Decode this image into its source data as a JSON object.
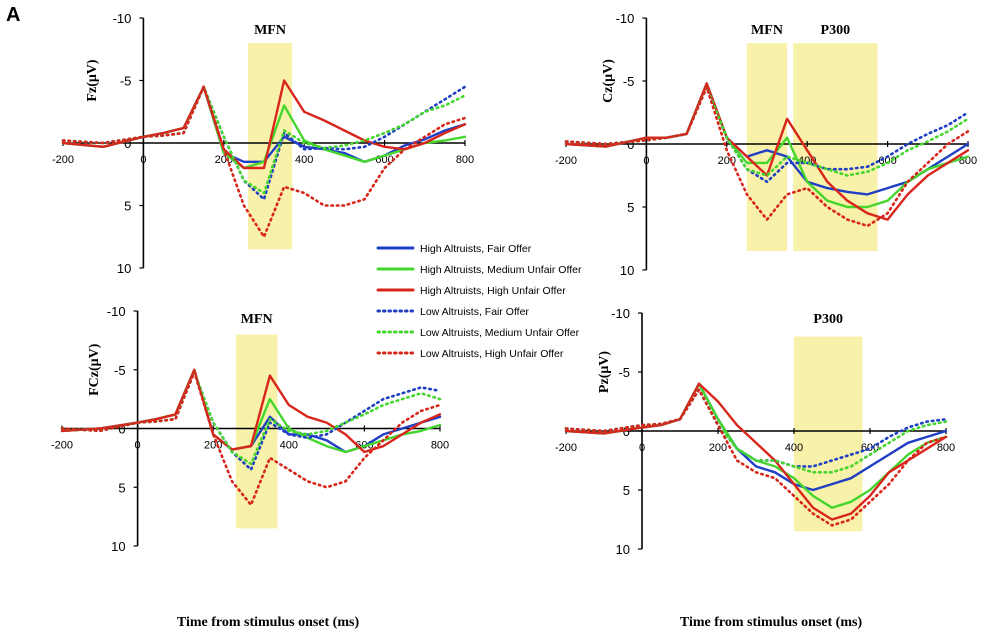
{
  "panel_label": "A",
  "x_axis_label": "Time from stimulus onset (ms)",
  "legend": [
    {
      "name": "High Altruists, Fair Offer",
      "color": "#1f3fc4",
      "style": "solid"
    },
    {
      "name": "High Altruists, Medium Unfair Offer",
      "color": "#44d62c",
      "style": "solid"
    },
    {
      "name": "High Altruists, High Unfair Offer",
      "color": "#d9261c",
      "style": "solid"
    },
    {
      "name": "Low Altruists, Fair Offer",
      "color": "#1f3fc4",
      "style": "dotted"
    },
    {
      "name": "Low Altruists, Medium Unfair Offer",
      "color": "#44d62c",
      "style": "dotted"
    },
    {
      "name": "Low Altruists, High Unfair Offer",
      "color": "#d9261c",
      "style": "dotted"
    }
  ],
  "chart_data": [
    {
      "type": "line",
      "electrode_label": "Fz(μV)",
      "components": [
        {
          "label": "MFN",
          "window_ms": [
            260,
            370
          ]
        }
      ],
      "xlim": [
        -200,
        800
      ],
      "ylim": [
        -10,
        10
      ],
      "y_inverted": true,
      "xticks": [
        -200,
        0,
        200,
        400,
        600,
        800
      ],
      "yticks": [
        -10,
        -5,
        0,
        5,
        10
      ],
      "x": [
        -200,
        -100,
        0,
        50,
        100,
        150,
        200,
        250,
        300,
        350,
        400,
        450,
        500,
        550,
        600,
        650,
        700,
        750,
        800
      ],
      "series": [
        {
          "values": [
            0,
            0.3,
            -0.5,
            -0.8,
            -1.2,
            -4.5,
            0.8,
            1.5,
            1.5,
            -0.5,
            0.3,
            0.5,
            0.8,
            1.5,
            1.0,
            0.2,
            -0.3,
            -1.0,
            -1.5
          ]
        },
        {
          "values": [
            0,
            0.3,
            -0.5,
            -0.8,
            -1.2,
            -4.5,
            0.8,
            2.0,
            1.5,
            -3.0,
            -0.2,
            0.5,
            1.0,
            1.5,
            1.0,
            0.5,
            0.0,
            -0.2,
            -0.5
          ]
        },
        {
          "values": [
            0,
            0.3,
            -0.5,
            -0.8,
            -1.2,
            -4.5,
            0.5,
            2.0,
            2.0,
            -5.0,
            -2.5,
            -1.8,
            -1.0,
            -0.2,
            0.3,
            0.5,
            0.0,
            -0.8,
            -1.5
          ]
        },
        {
          "values": [
            -0.2,
            0.0,
            -0.5,
            -0.6,
            -0.8,
            -4.5,
            -0.5,
            3.0,
            4.5,
            -0.8,
            0.5,
            0.4,
            0.5,
            0.3,
            -0.5,
            -1.5,
            -2.5,
            -3.5,
            -4.5
          ]
        },
        {
          "values": [
            -0.2,
            0.0,
            -0.5,
            -0.6,
            -0.8,
            -4.5,
            -0.5,
            3.0,
            4.0,
            -1.0,
            0.0,
            0.4,
            0.2,
            -0.2,
            -0.8,
            -1.5,
            -2.5,
            -3.0,
            -3.8
          ]
        },
        {
          "values": [
            -0.2,
            0.0,
            -0.5,
            -0.6,
            -0.8,
            -4.5,
            0.5,
            5.0,
            7.5,
            3.5,
            4.0,
            5.0,
            5.0,
            4.5,
            2.0,
            0.5,
            -0.5,
            -1.5,
            -2.0
          ]
        }
      ]
    },
    {
      "type": "line",
      "electrode_label": "Cz(μV)",
      "components": [
        {
          "label": "MFN",
          "window_ms": [
            250,
            350
          ]
        },
        {
          "label": "P300",
          "window_ms": [
            365,
            575
          ]
        }
      ],
      "xlim": [
        -200,
        800
      ],
      "ylim": [
        -10,
        10
      ],
      "y_inverted": true,
      "xticks": [
        -200,
        0,
        200,
        400,
        600,
        800
      ],
      "yticks": [
        -10,
        -5,
        0,
        5,
        10
      ],
      "x": [
        -200,
        -100,
        0,
        50,
        100,
        150,
        200,
        250,
        300,
        350,
        400,
        450,
        500,
        550,
        600,
        650,
        700,
        750,
        800
      ],
      "series": [
        {
          "values": [
            0,
            0.2,
            -0.5,
            -0.5,
            -0.8,
            -4.8,
            -0.5,
            1.0,
            0.5,
            1.0,
            3.0,
            3.5,
            3.8,
            4.0,
            3.5,
            3.0,
            2.0,
            1.0,
            0.0
          ]
        },
        {
          "values": [
            0,
            0.2,
            -0.5,
            -0.5,
            -0.8,
            -4.8,
            -0.5,
            1.5,
            1.5,
            -0.5,
            3.0,
            4.5,
            5.0,
            5.0,
            4.5,
            3.0,
            2.0,
            1.5,
            1.0
          ]
        },
        {
          "values": [
            0,
            0.2,
            -0.5,
            -0.5,
            -0.8,
            -4.8,
            -0.5,
            1.0,
            2.5,
            -2.0,
            0.5,
            3.0,
            4.5,
            5.5,
            6.0,
            4.0,
            2.5,
            1.5,
            0.5
          ]
        },
        {
          "values": [
            -0.2,
            0.0,
            -0.3,
            -0.5,
            -0.8,
            -4.5,
            -0.5,
            2.0,
            3.0,
            1.5,
            1.5,
            2.0,
            2.0,
            1.8,
            1.0,
            0.0,
            -0.8,
            -1.5,
            -2.5
          ]
        },
        {
          "values": [
            -0.2,
            0.0,
            -0.3,
            -0.5,
            -0.8,
            -4.5,
            -0.5,
            2.0,
            2.5,
            1.0,
            1.5,
            2.0,
            2.5,
            2.2,
            1.5,
            0.5,
            -0.2,
            -1.0,
            -2.0
          ]
        },
        {
          "values": [
            -0.2,
            0.0,
            -0.3,
            -0.5,
            -0.8,
            -4.5,
            0.5,
            4.0,
            6.0,
            4.0,
            3.5,
            5.0,
            6.0,
            6.5,
            5.5,
            3.0,
            1.5,
            0.0,
            -1.0
          ]
        }
      ]
    },
    {
      "type": "line",
      "electrode_label": "FCz(μV)",
      "components": [
        {
          "label": "MFN",
          "window_ms": [
            260,
            370
          ]
        }
      ],
      "xlim": [
        -200,
        800
      ],
      "ylim": [
        -10,
        10
      ],
      "y_inverted": true,
      "xticks": [
        -200,
        0,
        200,
        400,
        600,
        800
      ],
      "yticks": [
        -10,
        -5,
        0,
        5,
        10
      ],
      "x": [
        -200,
        -100,
        0,
        50,
        100,
        150,
        200,
        250,
        300,
        350,
        400,
        450,
        500,
        550,
        600,
        650,
        700,
        750,
        800
      ],
      "series": [
        {
          "values": [
            0.2,
            0,
            -0.5,
            -0.8,
            -1.2,
            -5.0,
            0.5,
            1.8,
            1.5,
            -1.0,
            0.5,
            0.5,
            1.0,
            2.0,
            1.5,
            0.5,
            0.0,
            -0.5,
            -1.0
          ]
        },
        {
          "values": [
            0.2,
            0,
            -0.5,
            -0.8,
            -1.2,
            -5.0,
            0.5,
            1.8,
            1.5,
            -2.5,
            0.0,
            0.8,
            1.5,
            2.0,
            1.5,
            1.0,
            0.5,
            0.2,
            -0.3
          ]
        },
        {
          "values": [
            0.2,
            0,
            -0.5,
            -0.8,
            -1.2,
            -5.0,
            0.5,
            1.8,
            1.5,
            -4.5,
            -2.0,
            -1.0,
            -0.5,
            0.5,
            2.0,
            1.5,
            0.5,
            -0.5,
            -1.2
          ]
        },
        {
          "values": [
            0.0,
            0.2,
            -0.5,
            -0.6,
            -0.8,
            -4.8,
            -0.5,
            2.0,
            3.5,
            -0.5,
            0.5,
            0.8,
            0.5,
            -0.5,
            -1.5,
            -2.5,
            -3.0,
            -3.5,
            -3.2
          ]
        },
        {
          "values": [
            0.0,
            0.2,
            -0.5,
            -0.6,
            -0.8,
            -4.8,
            -0.5,
            2.0,
            3.0,
            -0.8,
            0.2,
            0.5,
            0.2,
            -0.5,
            -1.2,
            -2.0,
            -2.5,
            -3.0,
            -2.5
          ]
        },
        {
          "values": [
            0.0,
            0.2,
            -0.5,
            -0.6,
            -0.8,
            -4.8,
            0.5,
            4.5,
            6.5,
            2.5,
            3.5,
            4.5,
            5.0,
            4.5,
            2.5,
            1.0,
            -0.5,
            -1.5,
            -2.0
          ]
        }
      ]
    },
    {
      "type": "line",
      "electrode_label": "Pz(μV)",
      "components": [
        {
          "label": "P300",
          "window_ms": [
            400,
            580
          ]
        }
      ],
      "xlim": [
        -200,
        800
      ],
      "ylim": [
        -10,
        10
      ],
      "y_inverted": true,
      "xticks": [
        -200,
        0,
        200,
        400,
        600,
        800
      ],
      "yticks": [
        -10,
        -5,
        0,
        5,
        10
      ],
      "x": [
        -200,
        -100,
        0,
        50,
        100,
        150,
        200,
        250,
        300,
        350,
        400,
        450,
        500,
        550,
        600,
        650,
        700,
        750,
        800
      ],
      "series": [
        {
          "values": [
            0.0,
            0.2,
            -0.3,
            -0.5,
            -1.0,
            -4.0,
            -1.0,
            1.5,
            3.0,
            3.5,
            4.5,
            5.0,
            4.5,
            4.0,
            3.0,
            2.0,
            1.0,
            0.5,
            0.0
          ]
        },
        {
          "values": [
            0.0,
            0.2,
            -0.3,
            -0.5,
            -1.0,
            -4.0,
            -1.0,
            1.5,
            2.5,
            3.0,
            4.0,
            5.5,
            6.5,
            6.0,
            5.0,
            3.5,
            2.0,
            1.0,
            0.5
          ]
        },
        {
          "values": [
            0.0,
            0.2,
            -0.3,
            -0.5,
            -1.0,
            -4.0,
            -2.5,
            -0.5,
            1.0,
            2.5,
            4.5,
            6.5,
            7.5,
            7.0,
            5.5,
            3.5,
            2.5,
            1.5,
            0.5
          ]
        },
        {
          "values": [
            -0.2,
            0.0,
            -0.5,
            -0.6,
            -1.0,
            -3.5,
            -0.5,
            1.5,
            2.5,
            2.5,
            3.0,
            3.0,
            2.5,
            2.0,
            1.5,
            0.5,
            -0.3,
            -0.8,
            -1.0
          ]
        },
        {
          "values": [
            -0.2,
            0.0,
            -0.5,
            -0.6,
            -1.0,
            -3.5,
            -0.5,
            1.5,
            2.5,
            2.5,
            3.0,
            3.5,
            3.5,
            3.0,
            2.0,
            1.0,
            0.0,
            -0.5,
            -0.8
          ]
        },
        {
          "values": [
            -0.2,
            0.0,
            -0.5,
            -0.6,
            -1.0,
            -3.5,
            -0.5,
            2.5,
            3.5,
            4.0,
            5.5,
            7.0,
            8.0,
            7.5,
            6.0,
            4.5,
            2.5,
            1.0,
            0.5
          ]
        }
      ]
    }
  ]
}
